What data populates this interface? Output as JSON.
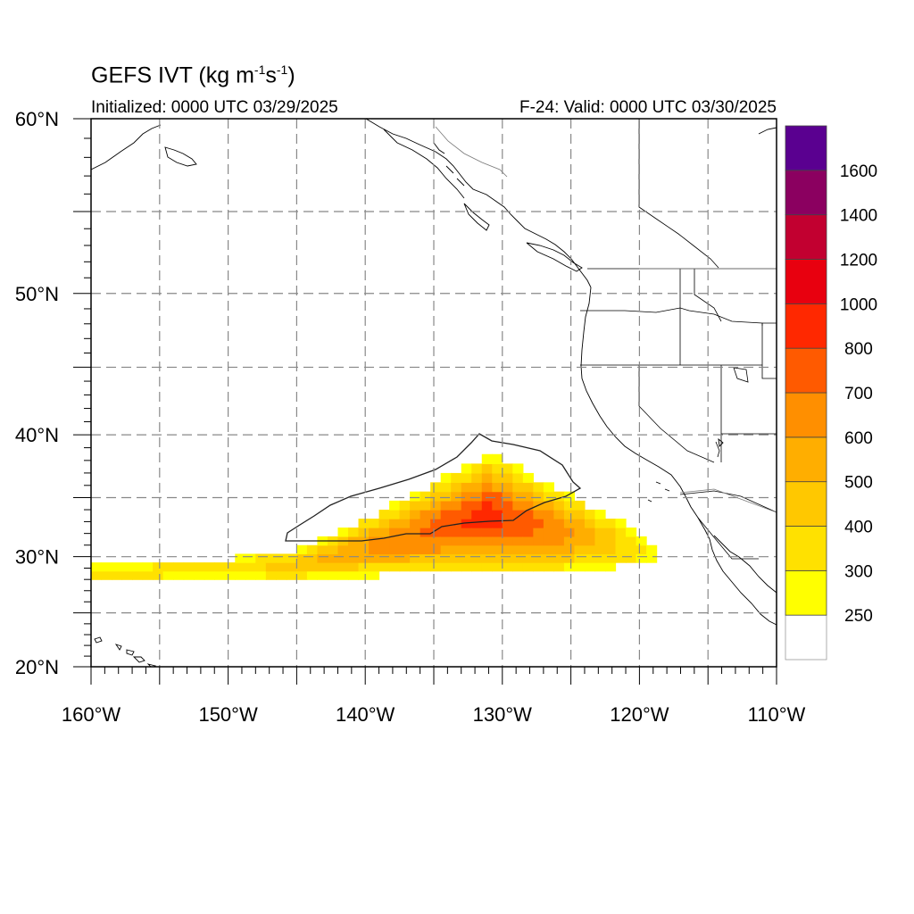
{
  "title": {
    "main": "GEFS IVT (kg m",
    "sup1": "-1",
    "mid": "s",
    "sup2": "-1",
    "end": ")"
  },
  "initialized": "Initialized: 0000 UTC 03/29/2025",
  "valid": "F-24: Valid: 0000 UTC 03/30/2025",
  "map": {
    "lon_range": [
      -160,
      -110
    ],
    "lat_range": [
      20,
      60
    ],
    "lat_ticks": [
      {
        "value": 20,
        "label": "20°N"
      },
      {
        "value": 30,
        "label": "30°N"
      },
      {
        "value": 40,
        "label": "40°N"
      },
      {
        "value": 50,
        "label": "50°N"
      },
      {
        "value": 60,
        "label": "60°N"
      }
    ],
    "lon_ticks": [
      {
        "value": -160,
        "label": "160°W"
      },
      {
        "value": -150,
        "label": "150°W"
      },
      {
        "value": -140,
        "label": "140°W"
      },
      {
        "value": -130,
        "label": "130°W"
      },
      {
        "value": -120,
        "label": "120°W"
      },
      {
        "value": -110,
        "label": "110°W"
      }
    ],
    "gridlines": "dashed every 5°"
  },
  "colorbar": {
    "levels": [
      250,
      300,
      400,
      500,
      600,
      700,
      800,
      1000,
      1200,
      1400,
      1600
    ],
    "labels": [
      "250",
      "300",
      "400",
      "500",
      "600",
      "700",
      "800",
      "1000",
      "1200",
      "1400",
      "1600"
    ],
    "colors": [
      "#ffffff",
      "#ffff00",
      "#ffe100",
      "#ffc800",
      "#ffae00",
      "#ff8f00",
      "#ff5a00",
      "#ff2800",
      "#e8000f",
      "#c20030",
      "#8b0060",
      "#5a0090"
    ]
  },
  "field": {
    "feature": "atmospheric river",
    "axis_start": {
      "lon": -160,
      "lat": 28.5
    },
    "core_center": {
      "lon": -131,
      "lat": 33.5
    },
    "axis_end": {
      "lon": -119,
      "lat": 30.5
    },
    "max_ivt_approx": 850,
    "contour_level": 500
  }
}
